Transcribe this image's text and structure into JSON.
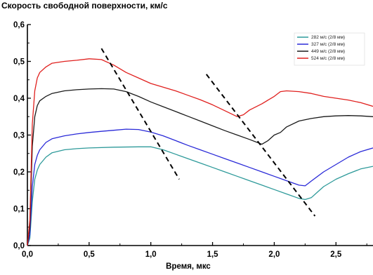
{
  "chart_data": {
    "type": "line",
    "title": "",
    "ylabel": "Скорость свободной поверхности, км/с",
    "xlabel": "Время, мкс",
    "xlim": [
      0.0,
      2.8
    ],
    "ylim": [
      0.0,
      0.6
    ],
    "xticks": [
      "0,0",
      "0,5",
      "1,0",
      "1,5",
      "2,0",
      "2,5"
    ],
    "xtick_values": [
      0.0,
      0.5,
      1.0,
      1.5,
      2.0,
      2.5
    ],
    "yticks": [
      "0,0",
      "0,1",
      "0,2",
      "0,3",
      "0,4",
      "0,5",
      "0,6"
    ],
    "ytick_values": [
      0.0,
      0.1,
      0.2,
      0.3,
      0.4,
      0.5,
      0.6
    ],
    "grid": false,
    "legend_position": "top-right",
    "series": [
      {
        "name": "282 м/с (2/8 мм)",
        "color": "#2e9a9a",
        "x": [
          0.0,
          0.02,
          0.04,
          0.06,
          0.08,
          0.1,
          0.15,
          0.2,
          0.3,
          0.4,
          0.5,
          0.7,
          0.9,
          1.0,
          1.1,
          1.2,
          1.3,
          1.4,
          1.5,
          1.6,
          1.7,
          1.8,
          1.9,
          2.0,
          2.1,
          2.2,
          2.25,
          2.3,
          2.35,
          2.4,
          2.5,
          2.6,
          2.7,
          2.8
        ],
        "y": [
          0.0,
          0.02,
          0.12,
          0.18,
          0.205,
          0.22,
          0.24,
          0.252,
          0.26,
          0.263,
          0.265,
          0.267,
          0.268,
          0.268,
          0.26,
          0.248,
          0.236,
          0.224,
          0.212,
          0.2,
          0.188,
          0.176,
          0.164,
          0.152,
          0.14,
          0.128,
          0.125,
          0.13,
          0.145,
          0.16,
          0.18,
          0.195,
          0.208,
          0.215
        ]
      },
      {
        "name": "327 м/с (2/8 мм)",
        "color": "#2a2ad8",
        "x": [
          0.0,
          0.02,
          0.04,
          0.06,
          0.08,
          0.1,
          0.15,
          0.2,
          0.3,
          0.4,
          0.5,
          0.6,
          0.7,
          0.8,
          0.9,
          1.0,
          1.1,
          1.2,
          1.3,
          1.4,
          1.5,
          1.6,
          1.7,
          1.8,
          1.9,
          2.0,
          2.1,
          2.2,
          2.25,
          2.3,
          2.4,
          2.5,
          2.6,
          2.7,
          2.8
        ],
        "y": [
          0.0,
          0.03,
          0.16,
          0.22,
          0.245,
          0.26,
          0.28,
          0.29,
          0.298,
          0.303,
          0.307,
          0.31,
          0.313,
          0.316,
          0.315,
          0.308,
          0.298,
          0.285,
          0.272,
          0.26,
          0.248,
          0.236,
          0.224,
          0.212,
          0.2,
          0.188,
          0.176,
          0.164,
          0.162,
          0.175,
          0.2,
          0.22,
          0.24,
          0.255,
          0.265
        ]
      },
      {
        "name": "449 м/с (2/8 мм)",
        "color": "#1a1a1a",
        "x": [
          0.0,
          0.02,
          0.04,
          0.06,
          0.08,
          0.1,
          0.15,
          0.2,
          0.3,
          0.4,
          0.5,
          0.6,
          0.7,
          0.8,
          0.9,
          1.0,
          1.1,
          1.2,
          1.3,
          1.4,
          1.5,
          1.6,
          1.7,
          1.8,
          1.9,
          1.95,
          2.0,
          2.05,
          2.1,
          2.2,
          2.3,
          2.4,
          2.5,
          2.6,
          2.7,
          2.8
        ],
        "y": [
          0.0,
          0.05,
          0.27,
          0.35,
          0.38,
          0.393,
          0.405,
          0.413,
          0.42,
          0.423,
          0.425,
          0.426,
          0.425,
          0.418,
          0.405,
          0.39,
          0.377,
          0.364,
          0.351,
          0.338,
          0.325,
          0.312,
          0.3,
          0.288,
          0.275,
          0.285,
          0.3,
          0.307,
          0.322,
          0.338,
          0.345,
          0.35,
          0.352,
          0.353,
          0.352,
          0.35
        ]
      },
      {
        "name": "524 м/с (2/8 мм)",
        "color": "#e0201e",
        "x": [
          0.0,
          0.02,
          0.04,
          0.06,
          0.08,
          0.1,
          0.15,
          0.2,
          0.3,
          0.4,
          0.5,
          0.6,
          0.7,
          0.8,
          0.9,
          1.0,
          1.1,
          1.2,
          1.3,
          1.4,
          1.5,
          1.6,
          1.7,
          1.75,
          1.8,
          1.9,
          2.0,
          2.05,
          2.1,
          2.2,
          2.3,
          2.4,
          2.5,
          2.6,
          2.7,
          2.8
        ],
        "y": [
          0.0,
          0.07,
          0.33,
          0.42,
          0.455,
          0.47,
          0.485,
          0.495,
          0.5,
          0.503,
          0.507,
          0.505,
          0.49,
          0.47,
          0.455,
          0.44,
          0.43,
          0.42,
          0.408,
          0.396,
          0.382,
          0.366,
          0.35,
          0.355,
          0.368,
          0.385,
          0.405,
          0.418,
          0.42,
          0.418,
          0.413,
          0.405,
          0.4,
          0.395,
          0.388,
          0.378
        ]
      }
    ],
    "annotations": [
      {
        "type": "dashed-line",
        "x": [
          0.6,
          1.23
        ],
        "y": [
          0.535,
          0.18
        ]
      },
      {
        "type": "dashed-line",
        "x": [
          1.45,
          2.33
        ],
        "y": [
          0.465,
          0.08
        ]
      }
    ]
  }
}
